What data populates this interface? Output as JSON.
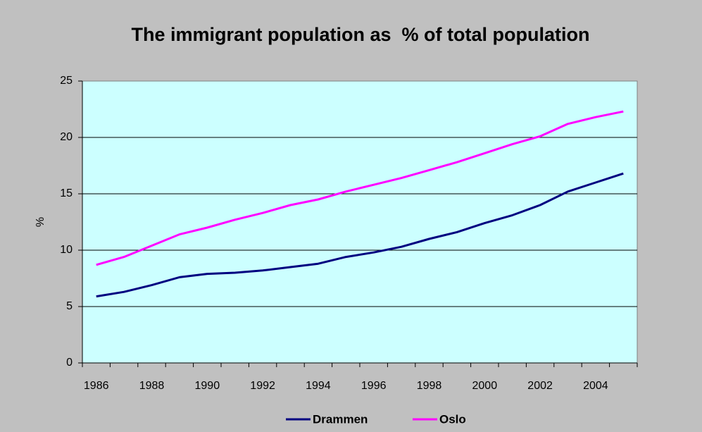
{
  "chart_data": {
    "type": "line",
    "title": "The immigrant population as  % of total population",
    "y_label": "%",
    "categories": [
      "1986",
      null,
      "1988",
      null,
      "1990",
      null,
      "1992",
      null,
      "1994",
      null,
      "1996",
      null,
      "1998",
      null,
      "2000",
      null,
      "2002",
      null,
      "2004",
      null
    ],
    "series": [
      {
        "name": "Drammen",
        "color": "#000080",
        "values": [
          5.9,
          6.3,
          6.9,
          7.6,
          7.9,
          8.0,
          8.2,
          8.5,
          8.8,
          9.4,
          9.8,
          10.3,
          11.0,
          11.6,
          12.4,
          13.1,
          14.0,
          15.2,
          16.0,
          16.8
        ]
      },
      {
        "name": "Oslo",
        "color": "#ff00ff",
        "values": [
          8.7,
          9.4,
          10.4,
          11.4,
          12.0,
          12.7,
          13.3,
          14.0,
          14.5,
          15.2,
          15.8,
          16.4,
          17.1,
          17.8,
          18.6,
          19.4,
          20.1,
          21.2,
          21.8,
          22.3
        ]
      }
    ],
    "ylim": [
      0,
      25
    ],
    "yticks": [
      0,
      5,
      10,
      15,
      20,
      25
    ],
    "grid": true,
    "legend": "bottom"
  }
}
